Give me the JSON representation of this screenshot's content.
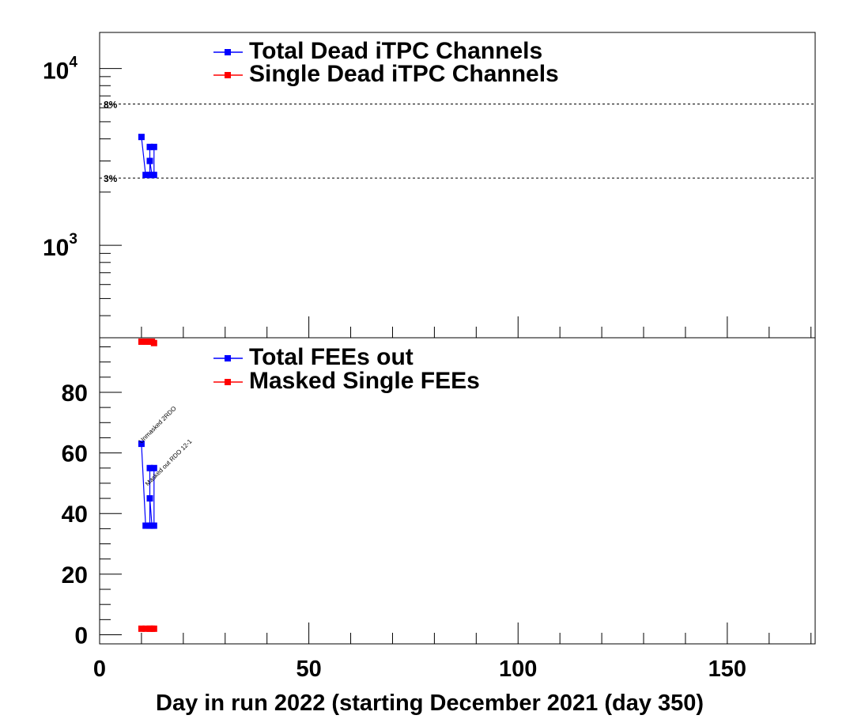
{
  "chart_data": [
    {
      "type": "line",
      "panel": "top",
      "yscale": "log",
      "ylim": [
        300,
        16000
      ],
      "xlim": [
        0,
        171
      ],
      "y_tick_labels": [
        {
          "value": 1000,
          "base": "10",
          "exp": "3"
        },
        {
          "value": 10000,
          "base": "10",
          "exp": "4"
        }
      ],
      "reference_lines": [
        {
          "value": 6300,
          "label": "8%"
        },
        {
          "value": 2400,
          "label": "3%"
        }
      ],
      "series": [
        {
          "name": "Total Dead iTPC Channels",
          "color": "#0000ff",
          "x": [
            10,
            11,
            12,
            12,
            12,
            12.5,
            13,
            13
          ],
          "y": [
            4100,
            2500,
            2500,
            3600,
            3000,
            2500,
            2500,
            3600
          ]
        },
        {
          "name": "Single Dead iTPC Channels",
          "color": "#ff0000",
          "x": [
            10,
            11,
            12,
            12.5,
            13
          ],
          "y": [
            285,
            285,
            285,
            285,
            280
          ]
        }
      ]
    },
    {
      "type": "line",
      "panel": "bottom",
      "ylim": [
        -3,
        98
      ],
      "xlim": [
        0,
        171
      ],
      "y_tick_labels": [
        "0",
        "20",
        "40",
        "60",
        "80"
      ],
      "x_tick_labels": [
        "0",
        "50",
        "100",
        "150"
      ],
      "xlabel": "Day in run 2022 (starting  December 2021 (day 350)",
      "series": [
        {
          "name": "Total FEEs out",
          "color": "#0000ff",
          "x": [
            10,
            11,
            12,
            12,
            12,
            12.5,
            13,
            13
          ],
          "y": [
            63,
            36,
            36,
            55,
            45,
            36,
            36,
            55
          ]
        },
        {
          "name": "Masked Single FEEs",
          "color": "#ff0000",
          "x": [
            10,
            11,
            12,
            12.5,
            13
          ],
          "y": [
            2,
            2,
            2,
            2,
            2
          ]
        }
      ],
      "annotations": [
        {
          "x": 10,
          "y": 63,
          "text": "Unmasked 2RDO"
        },
        {
          "x": 11.5,
          "y": 49,
          "text": "Masked out RDO 12-1"
        }
      ]
    }
  ]
}
